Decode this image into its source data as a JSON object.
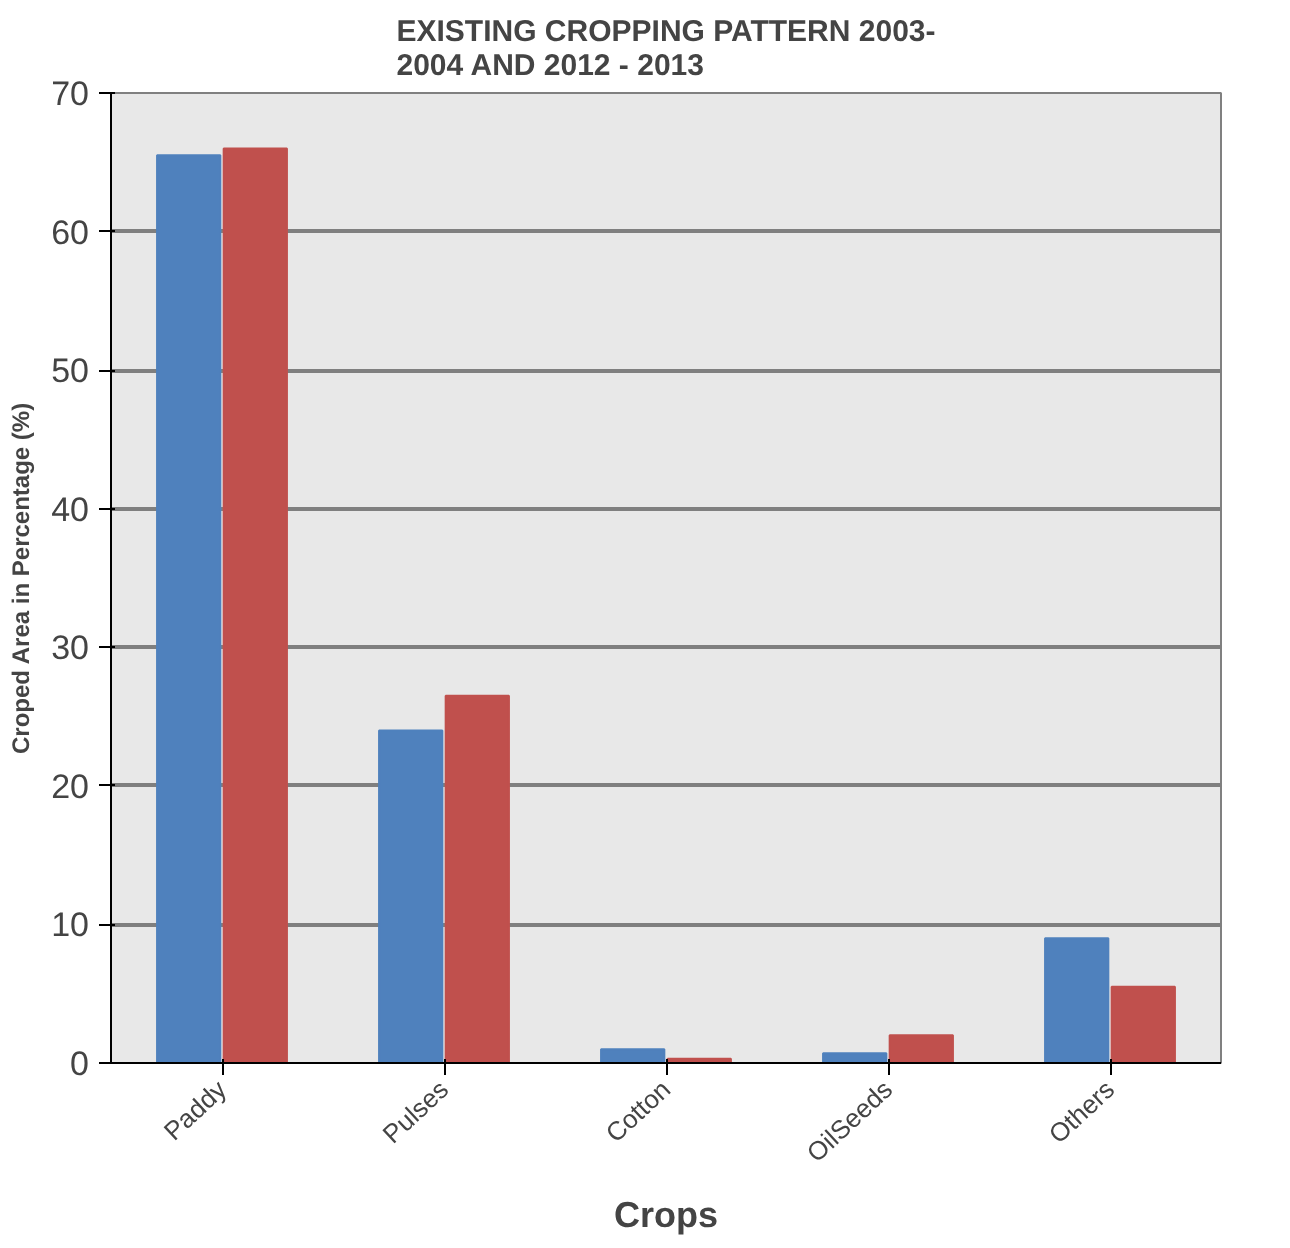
{
  "chart_data": {
    "type": "bar",
    "title": "EXISTING CROPPING PATTERN 2003-\n2004 AND 2012 - 2013",
    "xlabel": "Crops",
    "ylabel": "Croped Area in Percentage (%)",
    "categories": [
      "Paddy",
      "Pulses",
      "Cotton",
      "OilSeeds",
      "Others"
    ],
    "series": [
      {
        "color": "#4f81bd",
        "values": [
          65.5,
          24,
          1,
          0.7,
          9
        ]
      },
      {
        "color": "#c0504d",
        "values": [
          66,
          26.5,
          0.3,
          2,
          5.5
        ]
      }
    ],
    "ylim": [
      0,
      70
    ],
    "yticks": [
      0,
      10,
      20,
      30,
      40,
      50,
      60,
      70
    ],
    "grid": "y"
  }
}
